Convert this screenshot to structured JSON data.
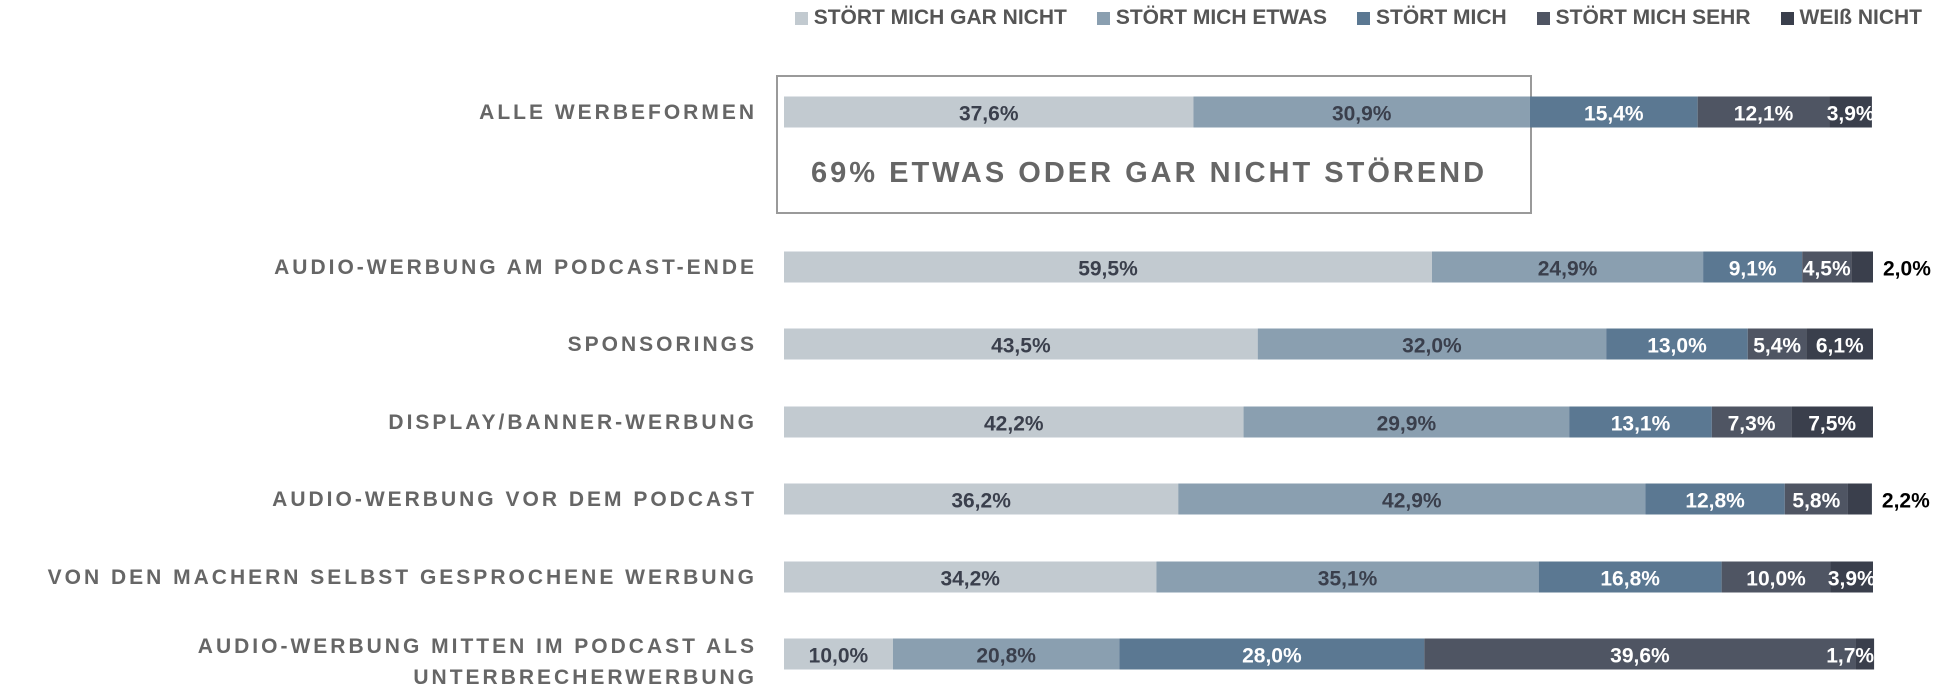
{
  "chart_data": {
    "type": "stacked-bar-horizontal",
    "categories": [
      "ALLE WERBEFORMEN",
      "AUDIO-WERBUNG AM PODCAST-ENDE",
      "SPONSORINGS",
      "DISPLAY/BANNER-WERBUNG",
      "AUDIO-WERBUNG VOR DEM PODCAST",
      "VON DEN MACHERN SELBST GESPROCHENE WERBUNG",
      "AUDIO-WERBUNG MITTEN IM PODCAST ALS UNTERBRECHERWERBUNG"
    ],
    "series": [
      {
        "name": "STÖRT MICH GAR NICHT",
        "color": "#c2cad0",
        "values": [
          37.6,
          59.5,
          43.5,
          42.2,
          36.2,
          34.2,
          10.0
        ],
        "value_labels": [
          "37,6%",
          "59,5%",
          "43,5%",
          "42,2%",
          "36,2%",
          "34,2%",
          "10,0%"
        ]
      },
      {
        "name": "STÖRT MICH ETWAS",
        "color": "#8a9fb0",
        "values": [
          30.9,
          24.9,
          32.0,
          29.9,
          42.9,
          35.1,
          20.8
        ],
        "value_labels": [
          "30,9%",
          "24,9%",
          "32,0%",
          "29,9%",
          "42,9%",
          "35,1%",
          "20,8%"
        ]
      },
      {
        "name": "STÖRT MICH",
        "color": "#5b7892",
        "values": [
          15.4,
          9.1,
          13.0,
          13.1,
          12.8,
          16.8,
          28.0
        ],
        "value_labels": [
          "15,4%",
          "9,1%",
          "13,0%",
          "13,1%",
          "12,8%",
          "16,8%",
          "28,0%"
        ]
      },
      {
        "name": "STÖRT MICH SEHR",
        "color": "#4f5563",
        "values": [
          12.1,
          4.5,
          5.4,
          7.3,
          5.8,
          10.0,
          39.6
        ],
        "value_labels": [
          "12,1%",
          "4,5%",
          "5,4%",
          "7,3%",
          "5,8%",
          "10,0%",
          "39,6%"
        ]
      },
      {
        "name": "WEIß NICHT",
        "color": "#3a3f4c",
        "values": [
          3.9,
          2.0,
          6.1,
          7.5,
          2.2,
          3.9,
          1.7
        ],
        "value_labels": [
          "3,9%",
          "2,0%",
          "6,1%",
          "7,5%",
          "2,2%",
          "3,9%",
          "1,7%"
        ]
      }
    ],
    "xlim": [
      0,
      100
    ],
    "annotation": "69% ETWAS ODER GAR NICHT STÖREND",
    "legend": "top-right"
  }
}
